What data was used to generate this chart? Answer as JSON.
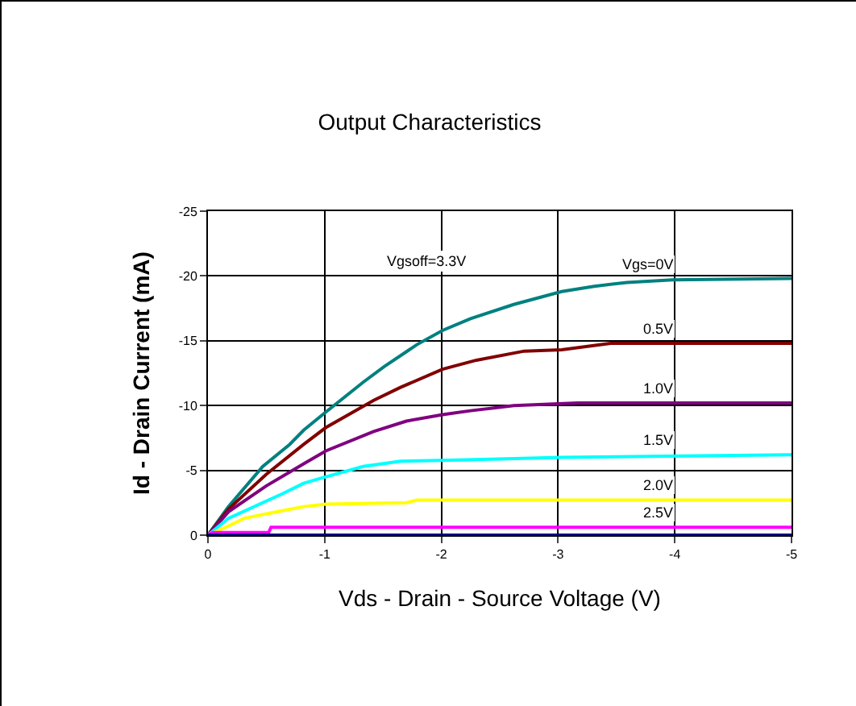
{
  "chart_data": {
    "type": "line",
    "title": "Output Characteristics",
    "xlabel": "Vds - Drain - Source Voltage (V)",
    "ylabel": "Id - Drain Current (mA)",
    "xlim": [
      0,
      -5
    ],
    "xticks": [
      0,
      -1,
      -2,
      -3,
      -4,
      -5
    ],
    "ylim": [
      0,
      -25
    ],
    "yticks": [
      0,
      -5,
      -10,
      -15,
      -20,
      -25
    ],
    "grid": true,
    "legend": false,
    "marker": "none",
    "line_style": "solid",
    "series": [
      {
        "name": "Vgs=0V",
        "color": "#008080",
        "x": [
          0,
          -0.175,
          -0.47,
          -0.7,
          -0.82,
          -1.01,
          -1.33,
          -1.51,
          -1.79,
          -2.01,
          -2.25,
          -2.62,
          -3.03,
          -3.31,
          -3.59,
          -3.98,
          -5
        ],
        "values": [
          0,
          -2.2,
          -5.3,
          -7.0,
          -8.1,
          -9.5,
          -11.8,
          -13.0,
          -14.7,
          -15.8,
          -16.7,
          -17.8,
          -18.8,
          -19.2,
          -19.5,
          -19.7,
          -19.8
        ]
      },
      {
        "name": "0.5V",
        "color": "#800000",
        "x": [
          0,
          -0.175,
          -0.5,
          -0.82,
          -1.01,
          -1.42,
          -1.65,
          -2.01,
          -2.3,
          -2.71,
          -3.03,
          -3.45,
          -5
        ],
        "values": [
          0,
          -2.0,
          -4.7,
          -7.0,
          -8.3,
          -10.4,
          -11.4,
          -12.8,
          -13.5,
          -14.2,
          -14.3,
          -14.8,
          -14.8
        ]
      },
      {
        "name": "1.0V",
        "color": "#800080",
        "x": [
          0,
          -0.175,
          -0.5,
          -0.82,
          -1.01,
          -1.42,
          -1.7,
          -2.01,
          -2.25,
          -2.62,
          -3.17,
          -5
        ],
        "values": [
          0,
          -1.8,
          -3.8,
          -5.5,
          -6.5,
          -8.0,
          -8.8,
          -9.3,
          -9.6,
          -10.0,
          -10.2,
          -10.2
        ]
      },
      {
        "name": "1.5V",
        "color": "#00ffff",
        "x": [
          0,
          -0.175,
          -0.64,
          -0.82,
          -1.01,
          -1.33,
          -1.65,
          -2.16,
          -3.03,
          -5
        ],
        "values": [
          0,
          -1.3,
          -3.2,
          -4.0,
          -4.5,
          -5.3,
          -5.7,
          -5.8,
          -6.0,
          -6.2
        ]
      },
      {
        "name": "2.0V",
        "color": "#ffff00",
        "x": [
          0,
          -0.175,
          -0.31,
          -0.59,
          -0.82,
          -1.01,
          -1.7,
          -1.79,
          -5
        ],
        "values": [
          0,
          -0.7,
          -1.3,
          -1.8,
          -2.2,
          -2.4,
          -2.5,
          -2.7,
          -2.7
        ]
      },
      {
        "name": "2.5V",
        "color": "#ff00ff",
        "x": [
          0,
          -0.04,
          -0.52,
          -0.54,
          -5
        ],
        "values": [
          0,
          -0.2,
          -0.2,
          -0.6,
          -0.6
        ]
      },
      {
        "color": "#000080",
        "x": [
          0,
          -5
        ],
        "values": [
          0,
          0
        ]
      }
    ],
    "annotations": [
      "Vgsoff=3.3V"
    ]
  }
}
